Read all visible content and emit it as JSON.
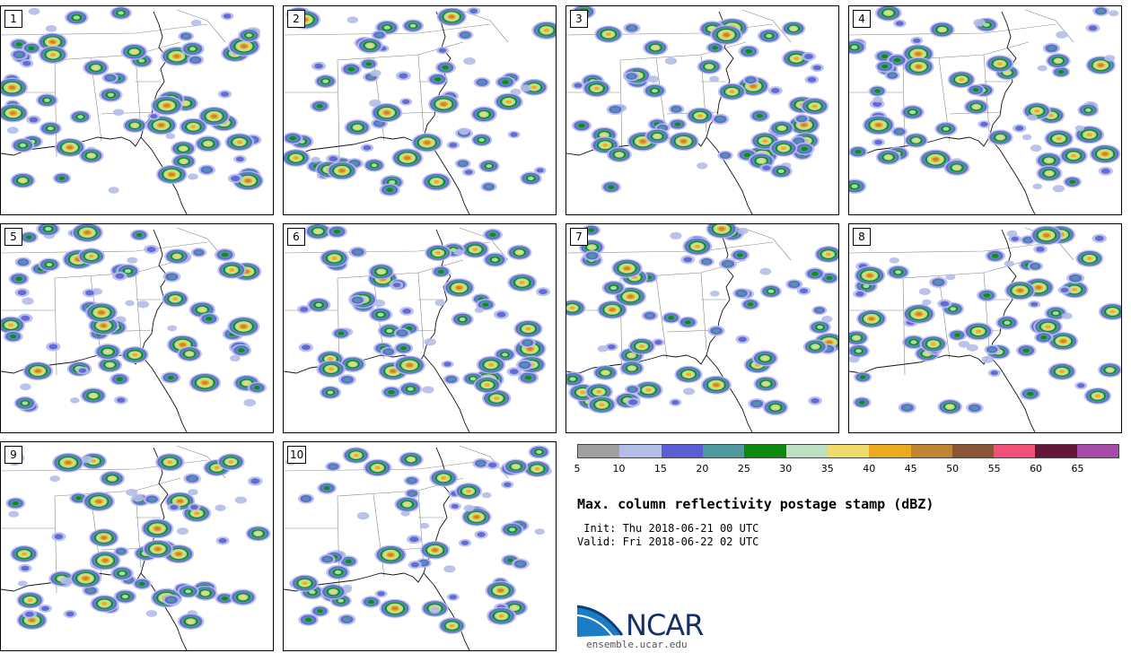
{
  "panels": [
    {
      "label": "1"
    },
    {
      "label": "2"
    },
    {
      "label": "3"
    },
    {
      "label": "4"
    },
    {
      "label": "5"
    },
    {
      "label": "6"
    },
    {
      "label": "7"
    },
    {
      "label": "8"
    },
    {
      "label": "9"
    },
    {
      "label": "10"
    }
  ],
  "colorbar": {
    "ticks": [
      "5",
      "10",
      "15",
      "20",
      "25",
      "30",
      "35",
      "40",
      "45",
      "50",
      "55",
      "60",
      "65"
    ],
    "colors": [
      "#a0a0a0",
      "#b4bde8",
      "#5a5fd6",
      "#4f9a9e",
      "#0b8a0b",
      "#bde0c2",
      "#f0dc6c",
      "#ebaa1f",
      "#c08432",
      "#8a5634",
      "#f25078",
      "#661638",
      "#a84aa8"
    ]
  },
  "title": "Max. column reflectivity postage stamp (dBZ)",
  "init": " Init: Thu 2018-06-21 00 UTC",
  "valid": "Valid: Fri 2018-06-22 02 UTC",
  "logo": {
    "text": "NCAR",
    "url": "ensemble.ucar.edu"
  }
}
